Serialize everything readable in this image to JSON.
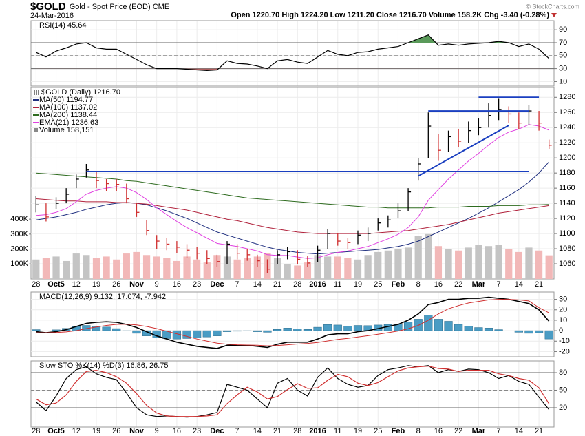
{
  "header": {
    "symbol": "$GOLD",
    "name": "Gold - Spot Price (EOD) CME",
    "date": "24-Mar-2016",
    "quote": "Open 1220.70 High 1224.20 Low 1211.20 Close 1216.70 Volume 158.2K Chg -3.40 (-0.28%)",
    "copyright": "© StockCharts.com"
  },
  "chart_data": [
    {
      "type": "line",
      "title": "RSI(14) 45.64",
      "ylim": [
        3,
        104
      ],
      "yticks": [
        10,
        30,
        50,
        70,
        90
      ],
      "reference_lines": [
        70,
        50,
        30
      ],
      "overbought_color": "#5a9a5a",
      "oversold_color": "#b06060",
      "series": [
        {
          "color": "#000000",
          "values": [
            55,
            48,
            57,
            62,
            68,
            70,
            62,
            60,
            60,
            52,
            44,
            36,
            30,
            30,
            30,
            29,
            28,
            27,
            28,
            42,
            38,
            37,
            34,
            30,
            42,
            44,
            40,
            38,
            48,
            58,
            52,
            50,
            55,
            56,
            60,
            62,
            64,
            70,
            76,
            82,
            66,
            68,
            66,
            68,
            69,
            70,
            72,
            70,
            64,
            68,
            60,
            45.64
          ]
        }
      ]
    },
    {
      "type": "ohlc",
      "title": "$GOLD (Daily) 1216.70",
      "categories": [
        "28",
        null,
        "Oct5",
        null,
        "12",
        null,
        "19",
        null,
        "26",
        null,
        "Nov",
        null,
        "9",
        null,
        "16",
        null,
        "23",
        null,
        "Dec",
        null,
        "7",
        null,
        "14",
        null,
        "21",
        null,
        "28",
        null,
        "2016",
        null,
        "11",
        null,
        "19",
        null,
        "25",
        null,
        "Feb",
        null,
        "8",
        null,
        "16",
        null,
        "22",
        null,
        "Mar",
        null,
        "7",
        null,
        "14",
        null,
        "21",
        null
      ],
      "ylim": [
        1040,
        1293
      ],
      "yticks": [
        1060,
        1080,
        1100,
        1120,
        1140,
        1160,
        1180,
        1200,
        1220,
        1240,
        1260,
        1280
      ],
      "y2lim": [
        0,
        1280000
      ],
      "y2ticks": [
        {
          "value": 100000,
          "label": "100K"
        },
        {
          "value": 200000,
          "label": "200K"
        },
        {
          "value": 300000,
          "label": "300K"
        },
        {
          "value": 400000,
          "label": "400K"
        }
      ],
      "up_color": "#000000",
      "down_color": "#d03030",
      "high": [
        1150,
        1140,
        1148,
        1160,
        1178,
        1192,
        1182,
        1172,
        1172,
        1166,
        1140,
        1118,
        1098,
        1094,
        1090,
        1086,
        1082,
        1078,
        1072,
        1090,
        1086,
        1080,
        1072,
        1066,
        1078,
        1082,
        1078,
        1070,
        1084,
        1106,
        1100,
        1094,
        1104,
        1108,
        1120,
        1124,
        1140,
        1160,
        1200,
        1260,
        1232,
        1236,
        1238,
        1248,
        1252,
        1272,
        1278,
        1268,
        1260,
        1270,
        1262,
        1224.2
      ],
      "low": [
        1128,
        1116,
        1132,
        1140,
        1160,
        1174,
        1160,
        1156,
        1156,
        1140,
        1122,
        1098,
        1080,
        1078,
        1074,
        1068,
        1066,
        1060,
        1056,
        1060,
        1066,
        1064,
        1056,
        1048,
        1060,
        1066,
        1060,
        1056,
        1062,
        1080,
        1084,
        1080,
        1086,
        1090,
        1104,
        1108,
        1120,
        1130,
        1170,
        1200,
        1196,
        1208,
        1214,
        1220,
        1230,
        1240,
        1250,
        1246,
        1238,
        1244,
        1236,
        1211.2
      ],
      "close": [
        1138,
        1122,
        1140,
        1152,
        1172,
        1184,
        1170,
        1166,
        1165,
        1146,
        1128,
        1104,
        1090,
        1086,
        1082,
        1078,
        1074,
        1067,
        1063,
        1086,
        1074,
        1072,
        1064,
        1053,
        1072,
        1076,
        1066,
        1061,
        1078,
        1100,
        1090,
        1088,
        1098,
        1100,
        1114,
        1118,
        1130,
        1155,
        1192,
        1242,
        1210,
        1228,
        1222,
        1236,
        1240,
        1256,
        1264,
        1258,
        1246,
        1262,
        1246,
        1216.7
      ],
      "series": [
        {
          "name": "MA(50) 1194.77",
          "color": "#1f2f7f",
          "values": [
            1118,
            1120,
            1122,
            1125,
            1128,
            1132,
            1135,
            1138,
            1140,
            1141,
            1140,
            1138,
            1134,
            1130,
            1125,
            1120,
            1114,
            1108,
            1102,
            1098,
            1094,
            1090,
            1086,
            1082,
            1079,
            1077,
            1075,
            1074,
            1073,
            1074,
            1075,
            1076,
            1077,
            1078,
            1079,
            1081,
            1083,
            1086,
            1090,
            1096,
            1102,
            1108,
            1114,
            1120,
            1127,
            1134,
            1142,
            1150,
            1158,
            1168,
            1180,
            1194.77
          ]
        },
        {
          "name": "MA(100) 1137.02",
          "color": "#b0203a",
          "values": [
            1146,
            1145,
            1144,
            1143,
            1143,
            1142,
            1142,
            1142,
            1141,
            1141,
            1140,
            1139,
            1137,
            1135,
            1133,
            1131,
            1128,
            1125,
            1122,
            1119,
            1117,
            1114,
            1111,
            1108,
            1106,
            1104,
            1102,
            1101,
            1100,
            1100,
            1100,
            1100,
            1100,
            1100,
            1101,
            1102,
            1103,
            1104,
            1106,
            1108,
            1110,
            1112,
            1115,
            1118,
            1121,
            1124,
            1127,
            1129,
            1131,
            1133,
            1135,
            1137.02
          ]
        },
        {
          "name": "MA(200) 1138.44",
          "color": "#2e6b1f",
          "values": [
            1180,
            1179,
            1178,
            1177,
            1176,
            1175,
            1174,
            1173,
            1172,
            1170,
            1169,
            1167,
            1165,
            1163,
            1161,
            1159,
            1157,
            1155,
            1153,
            1151,
            1149,
            1147,
            1146,
            1145,
            1144,
            1143,
            1142,
            1141,
            1140,
            1139,
            1138,
            1137,
            1136,
            1135,
            1135,
            1134,
            1134,
            1134,
            1134,
            1134,
            1135,
            1135,
            1135,
            1136,
            1136,
            1136,
            1137,
            1137,
            1137,
            1138,
            1138,
            1138.44
          ]
        },
        {
          "name": "EMA(21) 1236.63",
          "color": "#e040e0",
          "values": [
            1124,
            1125,
            1128,
            1133,
            1142,
            1152,
            1157,
            1160,
            1162,
            1160,
            1154,
            1145,
            1134,
            1125,
            1116,
            1108,
            1101,
            1094,
            1087,
            1085,
            1083,
            1080,
            1077,
            1072,
            1071,
            1071,
            1069,
            1067,
            1068,
            1072,
            1075,
            1077,
            1080,
            1083,
            1088,
            1093,
            1099,
            1108,
            1122,
            1144,
            1158,
            1172,
            1184,
            1196,
            1206,
            1217,
            1227,
            1234,
            1238,
            1244,
            1242,
            1236.63
          ]
        }
      ],
      "volume": {
        "name": "Volume 158,151",
        "axis": "y2",
        "up_color": "#c4c4c4",
        "down_color": "#f2b8b8",
        "values": [
          130000,
          140000,
          150000,
          120000,
          170000,
          160000,
          140000,
          150000,
          130000,
          170000,
          180000,
          160000,
          150000,
          140000,
          120000,
          150000,
          130000,
          110000,
          160000,
          150000,
          130000,
          140000,
          150000,
          170000,
          140000,
          100000,
          90000,
          110000,
          160000,
          150000,
          150000,
          140000,
          130000,
          160000,
          180000,
          190000,
          200000,
          210000,
          290000,
          300000,
          220000,
          200000,
          190000,
          210000,
          230000,
          220000,
          230000,
          200000,
          180000,
          210000,
          190000,
          158151
        ]
      },
      "trendline_color": "#1a3fc0",
      "trendlines": [
        {
          "from": 5,
          "to": 49,
          "values": [
            1182,
            1182
          ]
        },
        {
          "from": 39,
          "to": 49,
          "values": [
            1262,
            1262
          ]
        },
        {
          "from": 44,
          "to": 50,
          "values": [
            1280,
            1280
          ]
        },
        {
          "from": 38,
          "to": 47,
          "values": [
            1176,
            1243
          ]
        }
      ]
    },
    {
      "type": "macd",
      "title": "MACD(12,26,9) 9.132, 17.074, -7.942",
      "ylim": [
        -25,
        37
      ],
      "yticks": [
        30,
        20,
        10,
        0,
        -10,
        -20
      ],
      "series": [
        {
          "color": "#000000",
          "values": [
            -1,
            -2,
            -1,
            1,
            4,
            7,
            8,
            8.5,
            8,
            6,
            3,
            -1,
            -5,
            -8,
            -11,
            -13,
            -15,
            -16,
            -17,
            -14,
            -14,
            -14,
            -15,
            -16,
            -13,
            -11,
            -11,
            -11,
            -8,
            -4,
            -3,
            -3,
            -1,
            0,
            2,
            4,
            6,
            10,
            16,
            25,
            27,
            30,
            30,
            31,
            31,
            32,
            31,
            30,
            28,
            26,
            20,
            9.132
          ]
        },
        {
          "color": "#d03030",
          "values": [
            -2,
            -2,
            -1.8,
            -1.2,
            0,
            2,
            3.5,
            5,
            6,
            6.2,
            5.5,
            4,
            2,
            -0.5,
            -3,
            -5.5,
            -8,
            -10,
            -12,
            -13,
            -13.5,
            -13.8,
            -14,
            -14.5,
            -14.2,
            -13.5,
            -12.8,
            -12.2,
            -11.3,
            -9.8,
            -8.4,
            -7.3,
            -6,
            -4.8,
            -3.4,
            -1.9,
            -0.3,
            1.8,
            5,
            10,
            16,
            21,
            24,
            26.5,
            28,
            29.5,
            30,
            30,
            29.5,
            28.5,
            22,
            17.074
          ]
        }
      ],
      "histogram": {
        "color": "#4a9cc4",
        "values": [
          1,
          0,
          0.8,
          2.2,
          4,
          5,
          4.5,
          3.5,
          2,
          -0.2,
          -2.5,
          -5,
          -7,
          -7.5,
          -8,
          -7.5,
          -7,
          -6,
          -5,
          -1,
          -0.5,
          -0.2,
          -1,
          -1.5,
          1.2,
          2.5,
          1.8,
          1.2,
          3.3,
          5.8,
          5.4,
          4.3,
          5,
          4.8,
          5.4,
          5.9,
          6.3,
          8.2,
          11,
          15,
          11,
          9,
          6,
          4.5,
          3,
          2.5,
          1,
          0,
          -1.5,
          -2.5,
          -2,
          -7.942
        ]
      }
    },
    {
      "type": "line",
      "title": "Slow STO %K(14) %D(3) 16.86, 26.75",
      "ylim": [
        -13,
        100
      ],
      "yticks": [
        80,
        50,
        20
      ],
      "reference_lines": [
        80,
        50,
        20
      ],
      "categories": [
        "28",
        null,
        "Oct5",
        null,
        "12",
        null,
        "19",
        null,
        "26",
        null,
        "Nov",
        null,
        "9",
        null,
        "16",
        null,
        "23",
        null,
        "Dec",
        null,
        "7",
        null,
        "14",
        null,
        "21",
        null,
        "28",
        null,
        "2016",
        null,
        "11",
        null,
        "19",
        null,
        "25",
        null,
        "Feb",
        null,
        "8",
        null,
        "16",
        null,
        "22",
        null,
        "Mar",
        null,
        "7",
        null,
        "14",
        null,
        "21",
        null
      ],
      "series": [
        {
          "color": "#000000",
          "values": [
            30,
            15,
            40,
            70,
            85,
            90,
            78,
            72,
            68,
            45,
            20,
            8,
            5,
            6,
            5,
            4,
            5,
            8,
            12,
            60,
            55,
            50,
            35,
            20,
            62,
            70,
            50,
            40,
            72,
            88,
            70,
            60,
            55,
            58,
            75,
            85,
            88,
            92,
            90,
            92,
            80,
            85,
            82,
            86,
            85,
            80,
            70,
            75,
            65,
            60,
            38,
            16.86
          ]
        },
        {
          "color": "#d03030",
          "values": [
            35,
            25,
            28,
            42,
            65,
            82,
            84,
            80,
            73,
            62,
            44,
            24,
            11,
            6,
            5,
            5,
            5,
            6,
            8,
            27,
            42,
            55,
            47,
            35,
            39,
            51,
            61,
            53,
            54,
            67,
            77,
            73,
            62,
            58,
            63,
            73,
            83,
            88,
            90,
            91,
            87,
            86,
            82,
            84,
            84,
            84,
            78,
            75,
            70,
            67,
            54,
            26.75
          ]
        }
      ]
    }
  ]
}
